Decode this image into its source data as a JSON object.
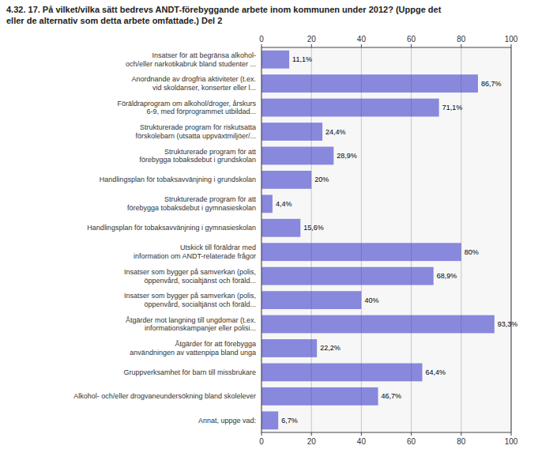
{
  "chart_data": {
    "type": "bar",
    "orientation": "horizontal",
    "title": "4.32. 17. På vilket/vilka sätt bedrevs ANDT-förebyggande arbete inom kommunen under 2012? (Uppge det\neller de alternativ som detta arbete omfattade.) Del 2",
    "categories": [
      "Insatser för att begränsa alkohol-\noch/eller narkotikabruk bland studenter ...",
      "Anordnande av drogfria aktiviteter (t.ex.\nvid skoldanser, konserter eller l...",
      "Föräldraprogram om alkohol/droger, årskurs\n6-9, med förprogrammet utbildad...",
      "Strukturerade program för riskutsatta\nförskolebarn (utsatta uppväxtmiljöer/...",
      "Strukturerade program för att\nförebygga tobaksdebut i grundskolan",
      "Handlingsplan för tobaksavvänjning i grundskolan",
      "Strukturerade program för att\nförebygga tobaksdebut i gymnasieskolan",
      "Handlingsplan för tobaksavvänjning i gymnasieskolan",
      "Utskick till föräldrar med\ninformation om ANDT-relaterade frågor",
      "Insatser som bygger på samverkan (polis,\nöppenvård, socialtjänst och föräld...",
      "Insatser som bygger på samverkan (polis,\nöppenvård, socialtjänst och föräld...",
      "Åtgärder mot langning till ungdomar (t.ex.\ninformationskampanjer eller polisi...",
      "Åtgärder för att förebygga\nanvändningen av vattenpipa bland unga",
      "Gruppverksamhet för barn till missbrukare",
      "Alkohol- och/eller drogvaneundersökning bland skolelever",
      "Annat, uppge vad:"
    ],
    "values": [
      11.1,
      86.7,
      71.1,
      24.4,
      28.9,
      20.0,
      4.4,
      15.6,
      80.0,
      68.9,
      40.0,
      93.3,
      22.2,
      64.4,
      46.7,
      6.7
    ],
    "value_labels": [
      "11,1%",
      "86,7%",
      "71,1%",
      "24,4%",
      "28,9%",
      "20%",
      "4,4%",
      "15,6%",
      "80%",
      "68,9%",
      "40%",
      "93,3%",
      "22,2%",
      "64,4%",
      "46,7%",
      "6,7%"
    ],
    "data_labels": true,
    "color": "#8888dd",
    "xlim": [
      0,
      100
    ],
    "xticks": [
      0,
      20,
      40,
      60,
      80,
      100
    ],
    "grid": true
  }
}
